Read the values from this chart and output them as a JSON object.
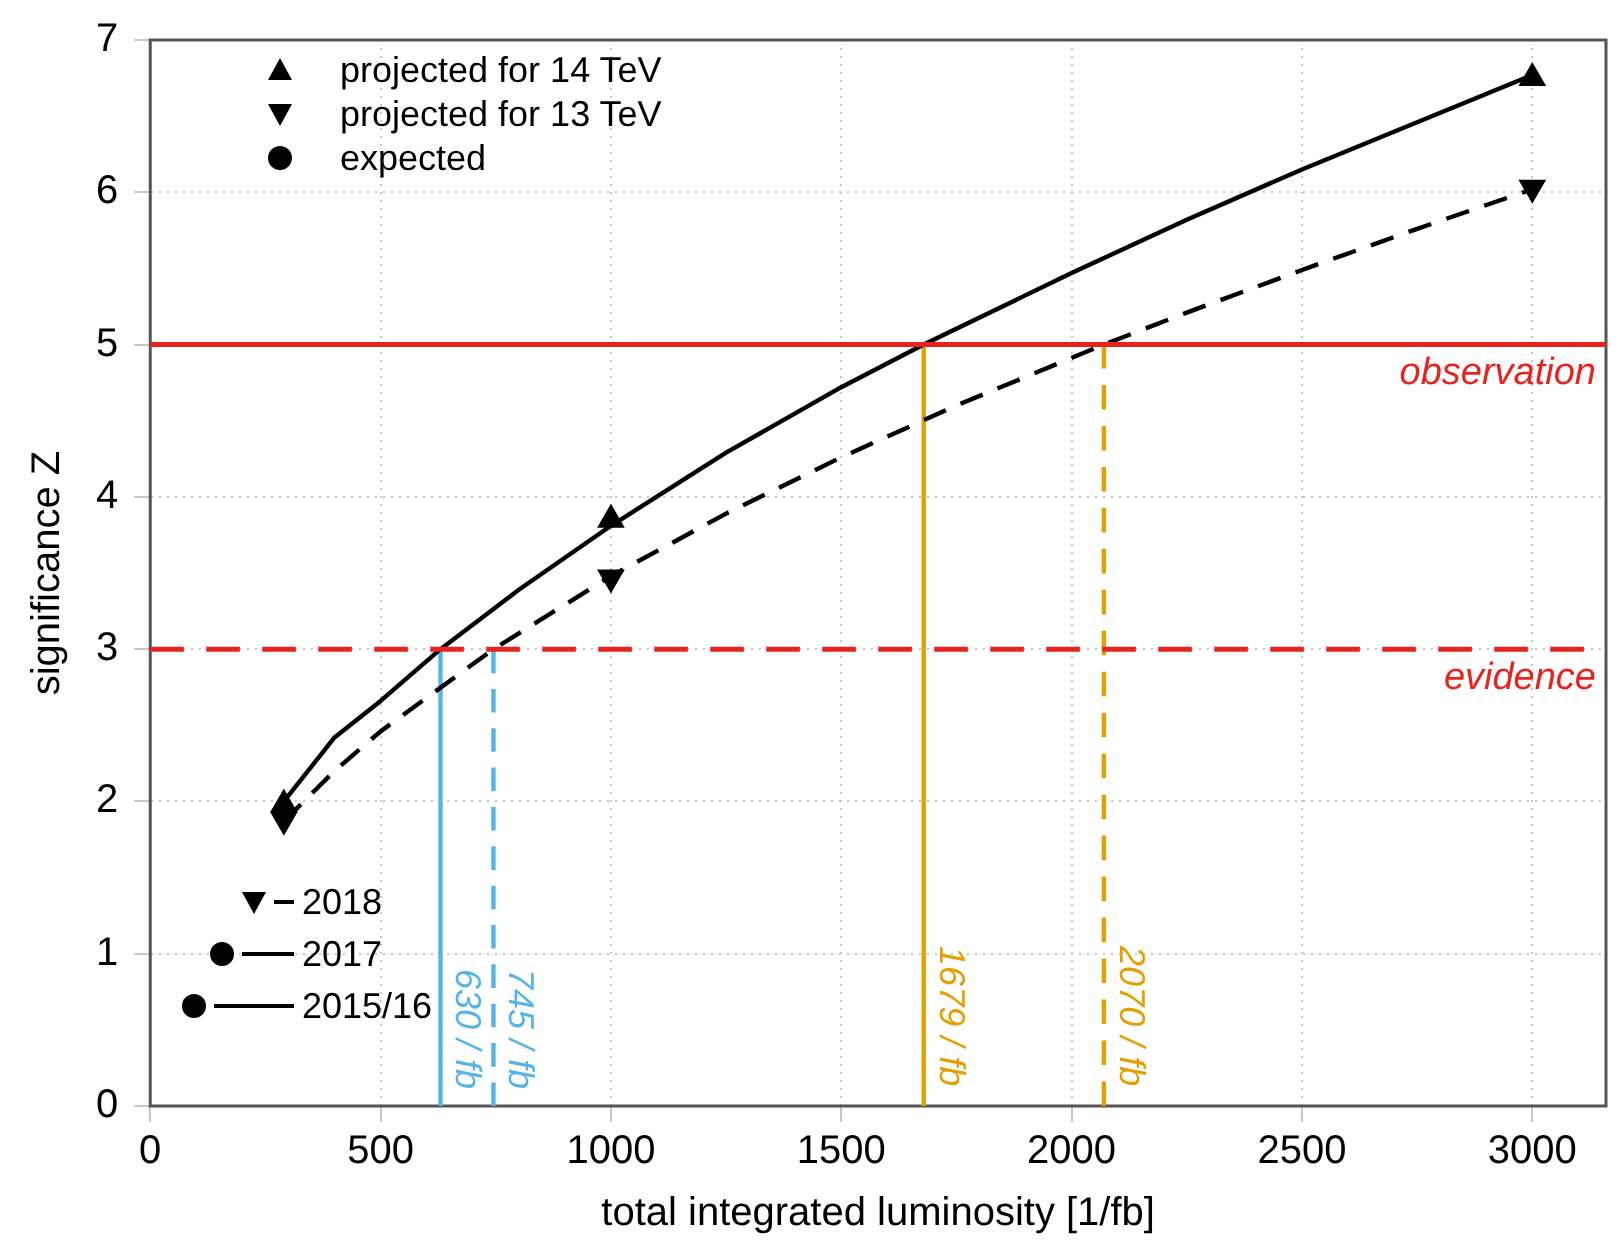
{
  "chart_data": {
    "type": "line",
    "xlabel": "total integrated luminosity [1/fb]",
    "ylabel": "significance Z",
    "xlim": [
      0,
      3160
    ],
    "xticks": [
      0,
      500,
      1000,
      1500,
      2000,
      2500,
      3000
    ],
    "ylim": [
      0,
      7
    ],
    "yticks": [
      0,
      1,
      2,
      3,
      4,
      5,
      6,
      7
    ],
    "grid": true,
    "legend": "top left",
    "series": [
      {
        "type": "line",
        "color": "#000000",
        "line_style": "solid",
        "marker": "none",
        "x": [
          290,
          400,
          500,
          630,
          800,
          1000,
          1250,
          1500,
          1679,
          2000,
          2250,
          2500,
          2750,
          3000
        ],
        "values": [
          2.0,
          2.42,
          2.66,
          3.0,
          3.39,
          3.81,
          4.29,
          4.72,
          5.0,
          5.47,
          5.82,
          6.15,
          6.46,
          6.77
        ]
      },
      {
        "type": "line",
        "color": "#000000",
        "line_style": "dashed",
        "marker": "none",
        "x": [
          290,
          400,
          500,
          745,
          1000,
          1250,
          1500,
          1750,
          2070,
          2250,
          2500,
          2750,
          3000
        ],
        "values": [
          1.87,
          2.2,
          2.46,
          3.0,
          3.48,
          3.89,
          4.26,
          4.6,
          5.0,
          5.21,
          5.49,
          5.76,
          6.02
        ]
      },
      {
        "type": "scatter",
        "name": "projected for 14 TeV",
        "color": "#000000",
        "marker": "triangle",
        "x": [
          290,
          1000,
          3000
        ],
        "values": [
          1.98,
          3.85,
          6.75
        ]
      },
      {
        "type": "scatter",
        "name": "projected for 13 TeV",
        "color": "#000000",
        "marker": "triangle-down",
        "x": [
          290,
          1000,
          3000
        ],
        "values": [
          1.88,
          3.47,
          6.03
        ]
      },
      {
        "type": "scatter",
        "name": "expected",
        "color": "#000000",
        "marker": "circle"
      },
      {
        "type": "line",
        "color": "#56b4e9",
        "line_style": "solid",
        "marker": "none",
        "x": [
          630,
          630
        ],
        "values": [
          0,
          3
        ]
      },
      {
        "type": "line",
        "color": "#56b4e9",
        "line_style": "dashed",
        "marker": "none",
        "x": [
          745,
          745
        ],
        "values": [
          0,
          3
        ]
      },
      {
        "type": "line",
        "color": "#e69f00",
        "line_style": "solid",
        "marker": "none",
        "x": [
          1679,
          1679
        ],
        "values": [
          0,
          5
        ]
      },
      {
        "type": "line",
        "color": "#e69f00",
        "line_style": "dashed",
        "marker": "none",
        "x": [
          2070,
          2070
        ],
        "values": [
          0,
          5
        ]
      }
    ],
    "ref_lines": [
      {
        "axis": "y",
        "value": 5,
        "label": "observation",
        "color": "#e8221d",
        "line_style": "solid"
      },
      {
        "axis": "y",
        "value": 3,
        "label": "evidence",
        "color": "#e8221d",
        "line_style": "dashed"
      }
    ],
    "annotations": [
      {
        "text": "630 / fb",
        "x": 630,
        "y": 0.9
      },
      {
        "text": "745 / fb",
        "x": 745,
        "y": 0.9
      },
      {
        "text": "1679 / fb",
        "x": 1679,
        "y": 1.05
      },
      {
        "text": "2070 / fb",
        "x": 2070,
        "y": 1.05
      },
      "2018",
      "2017",
      "2015/16"
    ]
  }
}
